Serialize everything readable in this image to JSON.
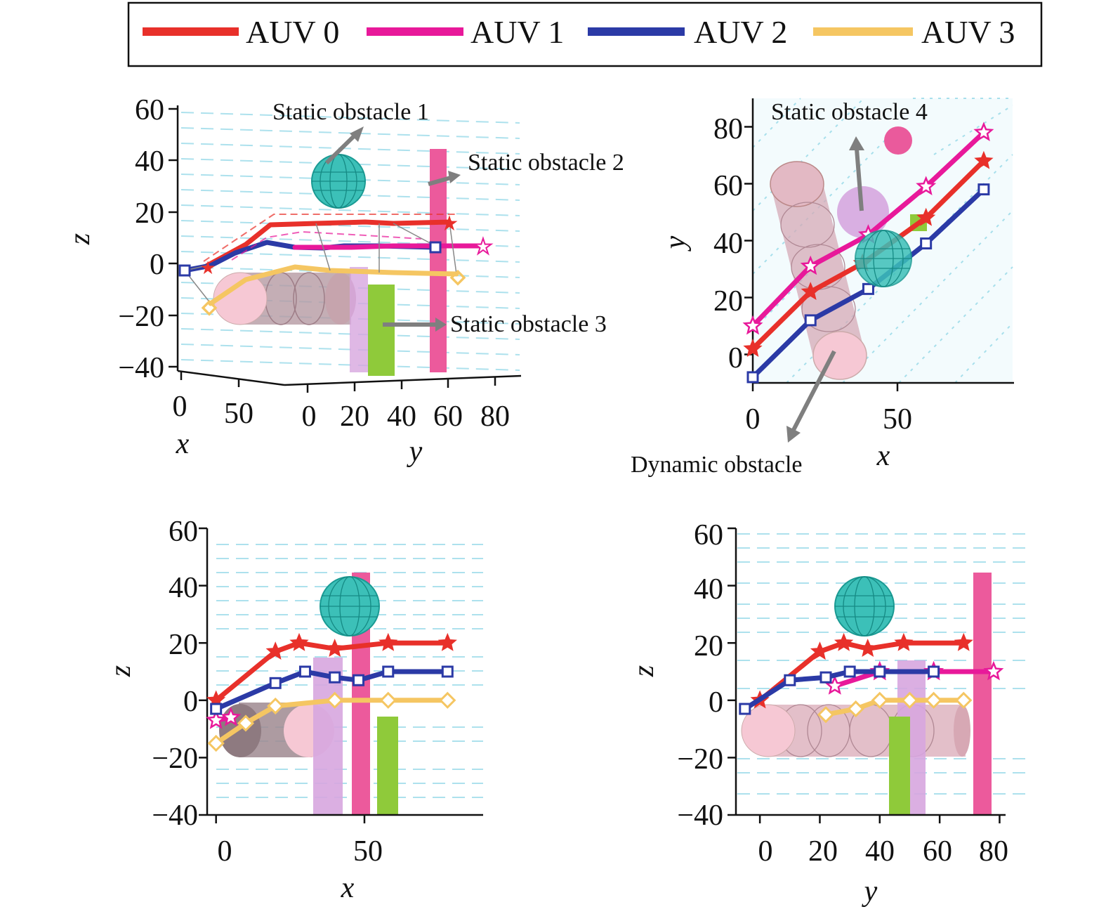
{
  "chart_data": {
    "type": "line",
    "legend": {
      "placement": "top",
      "entries": [
        {
          "name": "AUV 0",
          "color": "#e8302a"
        },
        {
          "name": "AUV 1",
          "color": "#e8199a"
        },
        {
          "name": "AUV 2",
          "color": "#2b3aa6"
        },
        {
          "name": "AUV 3",
          "color": "#f5c662"
        }
      ]
    },
    "panels": [
      {
        "id": "view-3d",
        "view": "3d",
        "xlabel": "x",
        "ylabel": "y",
        "zlabel": "z",
        "z_ticks": [
          "60",
          "40",
          "20",
          "0",
          "−20",
          "−40"
        ],
        "x_ticks": [
          "0",
          "50"
        ],
        "y_ticks": [
          "0",
          "20",
          "40",
          "60",
          "80"
        ],
        "annotations": [
          "Static obstacle 1",
          "Static obstacle 2",
          "Static obstacle 3"
        ]
      },
      {
        "id": "view-xy",
        "view": "top",
        "xlabel": "x",
        "ylabel": "y",
        "xlim": [
          0,
          90
        ],
        "ylim": [
          -10,
          90
        ],
        "x_ticks": [
          "0",
          "50"
        ],
        "y_ticks": [
          "0",
          "20",
          "40",
          "60",
          "80"
        ],
        "annotations": [
          "Static obstacle 4",
          "Dynamic obstacle"
        ],
        "series": [
          {
            "name": "AUV 0",
            "x": [
              0,
              20,
              38,
              60,
              80
            ],
            "y": [
              2,
              22,
              32,
              48,
              68
            ]
          },
          {
            "name": "AUV 1",
            "x": [
              0,
              20,
              40,
              60,
              80
            ],
            "y": [
              10,
              31,
              42,
              59,
              78
            ]
          },
          {
            "name": "AUV 2",
            "x": [
              0,
              20,
              40,
              60,
              80
            ],
            "y": [
              -8,
              12,
              23,
              39,
              58
            ]
          }
        ]
      },
      {
        "id": "view-xz",
        "view": "side",
        "xlabel": "x",
        "ylabel": "z",
        "xlim": [
          -3,
          90
        ],
        "ylim": [
          -40,
          60
        ],
        "x_ticks": [
          "0",
          "50"
        ],
        "y_ticks": [
          "60",
          "40",
          "20",
          "0",
          "−20",
          "−40"
        ],
        "series": [
          {
            "name": "AUV 0",
            "x": [
              0,
              20,
              28,
              40,
              58,
              78
            ],
            "y": [
              0,
              17,
              20,
              18,
              20,
              20
            ]
          },
          {
            "name": "AUV 1",
            "x": [
              0,
              5
            ],
            "y": [
              -7,
              -6
            ]
          },
          {
            "name": "AUV 2",
            "x": [
              0,
              20,
              30,
              40,
              48,
              58,
              78
            ],
            "y": [
              -3,
              6,
              10,
              8,
              7,
              10,
              10
            ]
          },
          {
            "name": "AUV 3",
            "x": [
              0,
              10,
              20,
              40,
              58,
              78
            ],
            "y": [
              -15,
              -8,
              -2,
              0,
              0,
              0
            ]
          }
        ]
      },
      {
        "id": "view-yz",
        "view": "side",
        "xlabel": "y",
        "ylabel": "z",
        "xlim": [
          -8,
          82
        ],
        "ylim": [
          -40,
          60
        ],
        "x_ticks": [
          "0",
          "20",
          "40",
          "60",
          "80"
        ],
        "y_ticks": [
          "60",
          "40",
          "20",
          "0",
          "−20",
          "−40"
        ],
        "series": [
          {
            "name": "AUV 0",
            "x": [
              0,
              20,
              28,
              36,
              48,
              68
            ],
            "y": [
              0,
              17,
              20,
              18,
              20,
              20
            ]
          },
          {
            "name": "AUV 1",
            "x": [
              25,
              40,
              58,
              78
            ],
            "y": [
              5,
              10,
              10,
              10
            ]
          },
          {
            "name": "AUV 2",
            "x": [
              -5,
              10,
              22,
              30,
              40,
              58
            ],
            "y": [
              -3,
              7,
              8,
              10,
              10,
              10
            ]
          },
          {
            "name": "AUV 3",
            "x": [
              22,
              32,
              40,
              50,
              58,
              68
            ],
            "y": [
              -5,
              -3,
              0,
              0,
              0,
              0
            ]
          }
        ]
      }
    ]
  }
}
